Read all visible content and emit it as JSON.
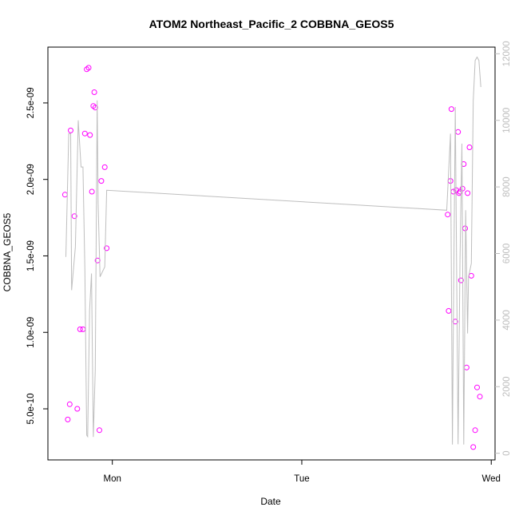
{
  "chart_data": {
    "type": "line",
    "title": "ATOM2 Northeast_Pacific_2 COBBNA_GEOS5",
    "xlabel": "Date",
    "ylabel": "COBBNA_GEOS5",
    "ylabel_right": "",
    "x_ticks": [
      "Mon",
      "Tue",
      "Wed"
    ],
    "y_ticks": [
      "5.0e-10",
      "1.0e-09",
      "1.5e-09",
      "2.0e-09",
      "2.5e-09"
    ],
    "y_tick_values": [
      5e-10,
      1e-09,
      1.5e-09,
      2e-09,
      2.5e-09
    ],
    "y_right_ticks": [
      "0",
      "2000",
      "4000",
      "6000",
      "8000",
      "10000",
      "12000"
    ],
    "y_right_tick_values": [
      0,
      2000,
      4000,
      6000,
      8000,
      10000,
      12000
    ],
    "x_unit": "days since Monday 00:00",
    "xlim": [
      -0.34,
      2.02
    ],
    "ylim": [
      1.66e-10,
      2.865e-09
    ],
    "ylim_right": [
      -200,
      12200
    ],
    "colors": {
      "points": "#ff00ff",
      "line": "#bebebe",
      "axis": "#000000",
      "right_axis": "#bebebe"
    },
    "series": [
      {
        "kind": "points",
        "axis": "left",
        "points": [
          [
            -0.25,
            1.9e-09
          ],
          [
            -0.235,
            4.3e-10
          ],
          [
            -0.225,
            5.3e-10
          ],
          [
            -0.22,
            2.32e-09
          ],
          [
            -0.2,
            1.76e-09
          ],
          [
            -0.185,
            5e-10
          ],
          [
            -0.17,
            1.02e-09
          ],
          [
            -0.155,
            1.02e-09
          ],
          [
            -0.145,
            2.3e-09
          ],
          [
            -0.135,
            2.72e-09
          ],
          [
            -0.125,
            2.73e-09
          ],
          [
            -0.118,
            2.29e-09
          ],
          [
            -0.108,
            1.92e-09
          ],
          [
            -0.1,
            2.48e-09
          ],
          [
            -0.095,
            2.57e-09
          ],
          [
            -0.09,
            2.47e-09
          ],
          [
            -0.078,
            1.47e-09
          ],
          [
            -0.068,
            3.6e-10
          ],
          [
            -0.058,
            1.99e-09
          ],
          [
            -0.04,
            2.08e-09
          ],
          [
            -0.03,
            1.55e-09
          ],
          [
            1.77,
            1.77e-09
          ],
          [
            1.775,
            1.14e-09
          ],
          [
            1.785,
            1.99e-09
          ],
          [
            1.79,
            2.46e-09
          ],
          [
            1.8,
            1.92e-09
          ],
          [
            1.81,
            1.07e-09
          ],
          [
            1.815,
            1.93e-09
          ],
          [
            1.825,
            2.31e-09
          ],
          [
            1.83,
            1.91e-09
          ],
          [
            1.835,
            1.92e-09
          ],
          [
            1.84,
            1.34e-09
          ],
          [
            1.848,
            1.94e-09
          ],
          [
            1.855,
            2.1e-09
          ],
          [
            1.862,
            1.68e-09
          ],
          [
            1.87,
            7.7e-10
          ],
          [
            1.875,
            1.91e-09
          ],
          [
            1.885,
            2.21e-09
          ],
          [
            1.895,
            1.37e-09
          ],
          [
            1.905,
            2.5e-10
          ],
          [
            1.915,
            3.6e-10
          ],
          [
            1.925,
            6.4e-10
          ],
          [
            1.94,
            5.8e-10
          ]
        ]
      },
      {
        "kind": "line",
        "axis": "right",
        "points": [
          [
            -0.245,
            5900.0
          ],
          [
            -0.23,
            9600.0
          ],
          [
            -0.22,
            9600.0
          ],
          [
            -0.215,
            4900.0
          ],
          [
            -0.195,
            6200.0
          ],
          [
            -0.18,
            10000.0
          ],
          [
            -0.165,
            8600.0
          ],
          [
            -0.155,
            8600.0
          ],
          [
            -0.145,
            5500.0
          ],
          [
            -0.135,
            540.0
          ],
          [
            -0.13,
            500.0
          ],
          [
            -0.12,
            4300.0
          ],
          [
            -0.11,
            5400.0
          ],
          [
            -0.1,
            490.0
          ],
          [
            -0.09,
            2500.0
          ],
          [
            -0.08,
            10600.0
          ],
          [
            -0.075,
            7500.0
          ],
          [
            -0.065,
            5300.0
          ],
          [
            -0.04,
            5600.0
          ],
          [
            -0.03,
            7900.0
          ],
          [
            1.765,
            7300.0
          ],
          [
            1.785,
            9600.0
          ],
          [
            1.795,
            260.0
          ],
          [
            1.8,
            4000.0
          ],
          [
            1.81,
            10400.0
          ],
          [
            1.825,
            270.0
          ],
          [
            1.835,
            5800.0
          ],
          [
            1.845,
            9300.0
          ],
          [
            1.855,
            260.0
          ],
          [
            1.865,
            7300.0
          ],
          [
            1.875,
            3600.0
          ],
          [
            1.88,
            5300.0
          ],
          [
            1.895,
            5700.0
          ],
          [
            1.905,
            10600.0
          ],
          [
            1.915,
            11800.0
          ],
          [
            1.925,
            11900.0
          ],
          [
            1.935,
            11800.0
          ],
          [
            1.945,
            11000.0
          ]
        ]
      }
    ]
  }
}
